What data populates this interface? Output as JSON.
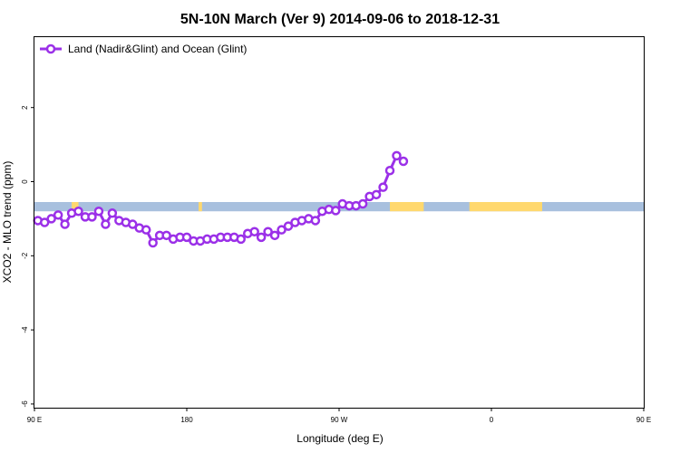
{
  "chart_data": {
    "type": "line",
    "title": "5N-10N March (Ver 9)   2014-09-06 to 2018-12-31",
    "xlabel": "Longitude (deg E)",
    "ylabel": "XCO2 - MLO trend (ppm)",
    "x_axis_range": [
      90,
      450
    ],
    "xlim": [
      90,
      450
    ],
    "ylim": [
      -6.1,
      3.9
    ],
    "x_ticks": [
      {
        "value": 90,
        "label": "90 E"
      },
      {
        "value": 180,
        "label": "180"
      },
      {
        "value": 270,
        "label": "90 W"
      },
      {
        "value": 360,
        "label": "0"
      },
      {
        "value": 450,
        "label": "90 E"
      },
      {
        "value": 540,
        "label": "180"
      }
    ],
    "y_ticks": [
      {
        "value": 2,
        "label": "2"
      },
      {
        "value": 0,
        "label": "0"
      },
      {
        "value": -2,
        "label": "-2"
      },
      {
        "value": -4,
        "label": "-4"
      },
      {
        "value": -6,
        "label": "-6"
      }
    ],
    "grid": false,
    "legend_position": "top-left",
    "background_band": {
      "y_range": [
        -0.8,
        -0.55
      ],
      "ocean_color": "#a8c0de",
      "land_color": "#ffd86e",
      "land_segments": [
        [
          112,
          116
        ],
        [
          187,
          189
        ],
        [
          300,
          320
        ],
        [
          347,
          390
        ],
        [
          495,
          499
        ],
        [
          511,
          514
        ]
      ]
    },
    "series": [
      {
        "name": "Land (Nadir&Glint) and Ocean (Glint)",
        "color": "#9b30e8",
        "segments": [
          {
            "x": [
              92,
              96,
              100,
              104,
              108,
              112,
              116,
              120,
              124,
              128,
              132,
              136,
              140,
              144,
              148,
              152,
              156,
              160,
              164,
              168,
              172,
              176,
              180,
              184,
              188,
              192,
              196,
              200,
              204,
              208,
              212,
              216,
              220,
              224,
              228,
              232,
              236,
              240,
              244,
              248,
              252,
              256,
              260,
              264,
              268,
              272,
              276,
              280,
              284,
              288,
              292,
              296,
              300,
              304,
              308,
              312,
              316,
              320,
              324,
              328,
              332,
              336,
              340,
              344,
              348,
              352,
              356,
              360
            ],
            "y": [
              -1.05,
              -1.1,
              -1.0,
              -0.9,
              -1.15,
              -0.85,
              -0.8,
              -0.95,
              -0.95,
              -0.8,
              -1.15,
              -0.85,
              -1.05,
              -1.1,
              -1.15,
              -1.25,
              -1.3,
              -1.65,
              -1.45,
              -1.45,
              -1.55,
              -1.5,
              -1.5,
              -1.6,
              -1.6,
              -1.55,
              -1.55,
              -1.5,
              -1.5,
              -1.5,
              -1.55,
              -1.4,
              -1.35,
              -1.5,
              -1.35,
              -1.45,
              -1.3,
              -1.2,
              -1.1,
              -1.05,
              -1.0,
              -1.05,
              -0.8,
              -0.75,
              -0.78,
              -0.6,
              -0.65,
              -0.65,
              -0.6,
              -0.4,
              -0.35,
              -0.15,
              0.3,
              0.7,
              0.55,
              null,
              null,
              null,
              null,
              null,
              null,
              null,
              null,
              null,
              null,
              null,
              null,
              null
            ]
          }
        ]
      }
    ]
  },
  "legend": {
    "label": "Land (Nadir&Glint) and Ocean (Glint)"
  }
}
